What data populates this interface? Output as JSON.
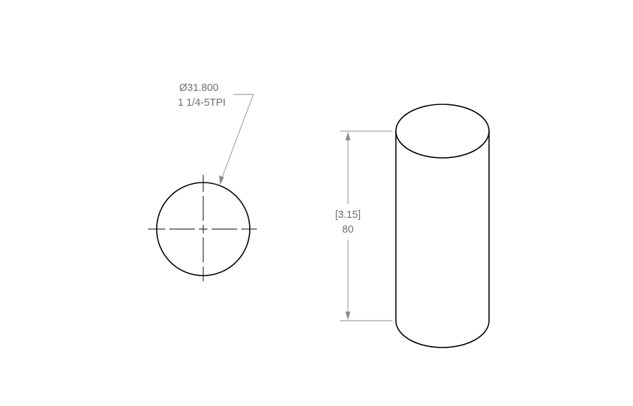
{
  "drawing": {
    "diameter_callout": {
      "size_label": "Ø31.800",
      "thread_label": "1 1/4-5TPI"
    },
    "length_dimension": {
      "inch_label": "[3.15]",
      "mm_label": "80"
    }
  }
}
